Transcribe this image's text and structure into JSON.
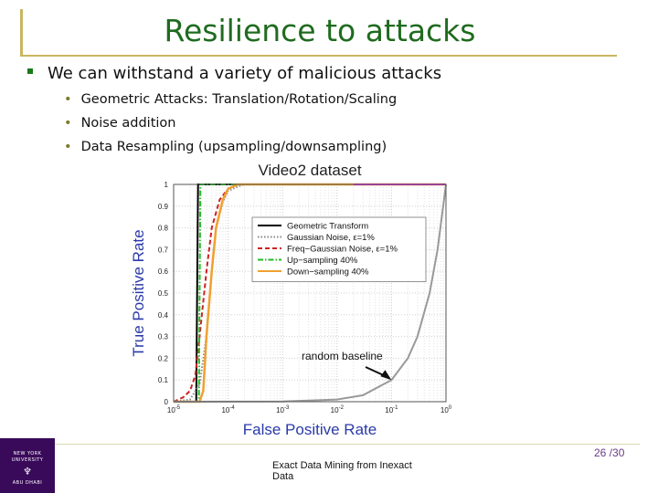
{
  "slide": {
    "title": "Resilience to attacks",
    "bullet_main": "We can withstand a variety of malicious attacks",
    "sub_bullets": [
      "Geometric Attacks: Translation/Rotation/Scaling",
      "Noise addition",
      "Data Resampling (upsampling/downsampling)"
    ],
    "footer_line1": "Exact Data Mining from Inexact",
    "footer_line2": "Data",
    "page_number": "26 /30",
    "logo_top": "NEW YORK UNIVERSITY",
    "logo_bottom": "ABU DHABI"
  },
  "chart_data": {
    "type": "line",
    "title": "Video2 dataset",
    "xlabel": "False Positive Rate",
    "ylabel": "True Positive Rate",
    "x_scale": "log",
    "xlim": [
      1e-05,
      1
    ],
    "ylim": [
      0,
      1
    ],
    "grid": true,
    "legend_position": "top-right",
    "x_tick_labels": [
      "10-5",
      "10-4",
      "10-3",
      "10-2",
      "10-1",
      "100"
    ],
    "y_tick_labels": [
      "0",
      "0.1",
      "0.2",
      "0.3",
      "0.4",
      "0.5",
      "0.6",
      "0.7",
      "0.8",
      "0.9",
      "1"
    ],
    "annotation": "random baseline",
    "series": [
      {
        "name": "Geometric Transform",
        "color": "#000000",
        "dash": "solid",
        "x": [
          1e-05,
          2.6e-05,
          2.7e-05,
          2.8e-05,
          1
        ],
        "y": [
          0,
          0,
          0.5,
          1,
          1
        ]
      },
      {
        "name": "Gaussian Noise, ε=1%",
        "color": "#888888",
        "dash": "dotted",
        "x": [
          1e-05,
          2e-05,
          3e-05,
          4e-05,
          5e-05,
          6e-05,
          8e-05,
          0.0001,
          0.00015,
          0.0002,
          1
        ],
        "y": [
          0,
          0.01,
          0.08,
          0.3,
          0.6,
          0.8,
          0.92,
          0.97,
          0.99,
          1,
          1
        ]
      },
      {
        "name": "Freq−Gaussian Noise, ε=1%",
        "color": "#cc2222",
        "dash": "dashed",
        "x": [
          1e-05,
          1.5e-05,
          2e-05,
          2.5e-05,
          3e-05,
          4e-05,
          5e-05,
          7e-05,
          0.0001,
          0.00015,
          1
        ],
        "y": [
          0,
          0.02,
          0.05,
          0.12,
          0.3,
          0.6,
          0.8,
          0.93,
          0.98,
          1,
          1
        ]
      },
      {
        "name": "Up−sampling 40%",
        "color": "#22bb22",
        "dash": "dashdot",
        "x": [
          1e-05,
          2.9e-05,
          3e-05,
          3.1e-05,
          1
        ],
        "y": [
          0,
          0,
          0.5,
          1,
          1
        ]
      },
      {
        "name": "Down−sampling 40%",
        "color": "#f0a030",
        "dash": "solid",
        "x": [
          1e-05,
          3e-05,
          3.5e-05,
          4e-05,
          5e-05,
          6e-05,
          8e-05,
          0.0001,
          0.00015,
          1
        ],
        "y": [
          0,
          0,
          0.05,
          0.3,
          0.6,
          0.8,
          0.93,
          0.98,
          1,
          1
        ]
      },
      {
        "name": "",
        "color": "#999999",
        "dash": "solid",
        "x": [
          1e-05,
          0.001,
          0.01,
          0.03,
          0.1,
          0.2,
          0.3,
          0.5,
          0.7,
          1
        ],
        "y": [
          1e-05,
          0.001,
          0.01,
          0.03,
          0.1,
          0.2,
          0.3,
          0.5,
          0.7,
          1
        ]
      },
      {
        "name": "",
        "color": "#dd33dd",
        "dash": "solid",
        "x": [
          0.02,
          1
        ],
        "y": [
          1,
          1
        ]
      }
    ]
  }
}
